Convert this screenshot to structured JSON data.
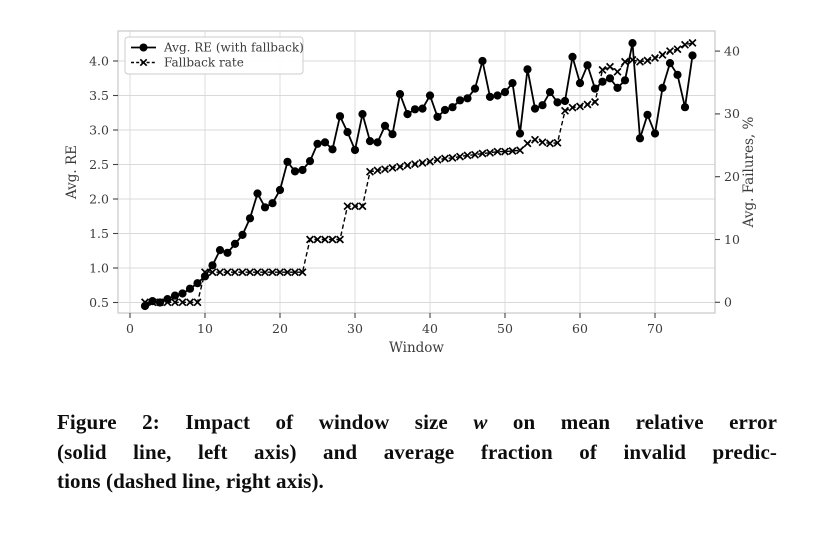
{
  "caption": {
    "line1_pre": "Figure 2: Impact of window size ",
    "line1_math": "w",
    "line1_post": " on mean relative error",
    "line2": "(solid line, left axis) and average fraction of invalid predic-",
    "line3": "tions (dashed line, right axis)."
  },
  "colors": {
    "line": "#000000",
    "grid": "#d9d9d9",
    "frame": "#c9c9c9",
    "tick_text": "#3b3b3b",
    "legend_border": "#cccccc",
    "legend_bg": "#ffffff"
  },
  "chart_data": {
    "type": "line",
    "title": "",
    "xlabel": "Window",
    "ylabel_left": "Avg. RE",
    "ylabel_right": "Avg. Failures, %",
    "grid": true,
    "legend_position": "upper left",
    "x_ticks": [
      0,
      10,
      20,
      30,
      40,
      50,
      60,
      70
    ],
    "y_ticks_left": [
      0.5,
      1.0,
      1.5,
      2.0,
      2.5,
      3.0,
      3.5,
      4.0
    ],
    "y_ticks_right": [
      0,
      10,
      20,
      30,
      40
    ],
    "xlim": [
      -1.6,
      78.0
    ],
    "ylim_left": [
      0.348,
      4.435
    ],
    "ylim_right": [
      -1.7,
      43.2
    ],
    "x": [
      2,
      3,
      4,
      5,
      6,
      7,
      8,
      9,
      10,
      11,
      12,
      13,
      14,
      15,
      16,
      17,
      18,
      19,
      20,
      21,
      22,
      23,
      24,
      25,
      26,
      27,
      28,
      29,
      30,
      31,
      32,
      33,
      34,
      35,
      36,
      37,
      38,
      39,
      40,
      41,
      42,
      43,
      44,
      45,
      46,
      47,
      48,
      49,
      50,
      51,
      52,
      53,
      54,
      55,
      56,
      57,
      58,
      59,
      60,
      61,
      62,
      63,
      64,
      65,
      66,
      67,
      68,
      69,
      70,
      71,
      72,
      73,
      74,
      75
    ],
    "series": [
      {
        "name": "Avg. RE (with fallback)",
        "axis": "left",
        "line": "solid",
        "marker": "circle",
        "values": [
          0.45,
          0.52,
          0.5,
          0.55,
          0.6,
          0.63,
          0.7,
          0.78,
          0.88,
          1.04,
          1.26,
          1.22,
          1.35,
          1.48,
          1.72,
          2.08,
          1.88,
          1.94,
          2.13,
          2.54,
          2.4,
          2.42,
          2.55,
          2.8,
          2.82,
          2.72,
          3.2,
          2.97,
          2.71,
          3.23,
          2.84,
          2.82,
          3.06,
          2.94,
          3.52,
          3.23,
          3.3,
          3.31,
          3.5,
          3.19,
          3.29,
          3.33,
          3.43,
          3.46,
          3.6,
          4.0,
          3.48,
          3.5,
          3.55,
          3.68,
          2.95,
          3.88,
          3.31,
          3.36,
          3.55,
          3.4,
          3.42,
          4.06,
          3.68,
          3.94,
          3.6,
          3.7,
          3.75,
          3.61,
          3.72,
          4.26,
          2.88,
          3.22,
          2.95,
          3.61,
          3.97,
          3.8,
          3.33,
          4.08
        ]
      },
      {
        "name": "Fallback rate",
        "axis": "right",
        "line": "dashed",
        "marker": "x",
        "values": [
          0,
          0,
          0,
          0,
          0,
          0,
          0,
          0,
          4.8,
          4.8,
          4.8,
          4.8,
          4.8,
          4.8,
          4.8,
          4.8,
          4.8,
          4.8,
          4.8,
          4.8,
          4.8,
          4.8,
          10.0,
          10.0,
          10.0,
          10.0,
          10.0,
          15.3,
          15.3,
          15.3,
          20.8,
          21.0,
          21.2,
          21.4,
          21.6,
          21.8,
          22.0,
          22.2,
          22.4,
          22.7,
          22.9,
          23.0,
          23.2,
          23.4,
          23.5,
          23.7,
          23.8,
          24.0,
          24.0,
          24.1,
          24.2,
          25.3,
          25.9,
          25.5,
          25.3,
          25.4,
          30.5,
          31.0,
          31.2,
          31.5,
          31.9,
          37.0,
          37.5,
          36.7,
          38.3,
          38.6,
          38.3,
          38.5,
          38.9,
          39.4,
          40.0,
          40.3,
          41.0,
          41.3
        ]
      }
    ]
  }
}
